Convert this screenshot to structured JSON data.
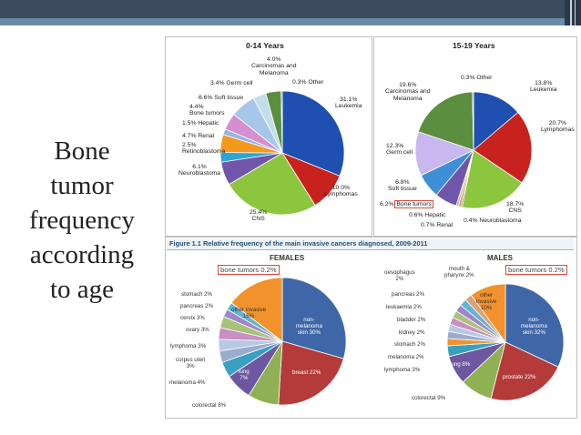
{
  "slide": {
    "title_lines": [
      "Bone",
      "tumor",
      "frequency",
      "according",
      "to age"
    ]
  },
  "chart_data": [
    {
      "type": "pie",
      "title": "0-14 Years",
      "slices": [
        {
          "label": "Leukemia",
          "text": "31.1%\nLeukemia",
          "value": 31.1,
          "color": "#1f4fb0"
        },
        {
          "label": "Lymphomas",
          "text": "10.0%\nLymphomas",
          "value": 10.0,
          "color": "#c8221e"
        },
        {
          "label": "CNS",
          "text": "25.4%\nCNS",
          "value": 25.4,
          "color": "#8cc63f"
        },
        {
          "label": "Neuroblastoma",
          "text": "6.1%\nNeuroblastoma",
          "value": 6.1,
          "color": "#7155a8"
        },
        {
          "label": "Retinoblastoma",
          "text": "2.5%\nRetinoblastoma",
          "value": 2.5,
          "color": "#2aa6d8"
        },
        {
          "label": "Renal",
          "text": "4.7% Renal",
          "value": 4.7,
          "color": "#f39a1e"
        },
        {
          "label": "Hepatic",
          "text": "1.5% Hepatic",
          "value": 1.5,
          "color": "#93b7e3"
        },
        {
          "label": "Bone tumors",
          "text": "4.4%\nBone tumors",
          "value": 4.4,
          "color": "#d58ecf"
        },
        {
          "label": "Soft tissue",
          "text": "6.6% Soft tissue",
          "value": 6.6,
          "color": "#a6c7ea"
        },
        {
          "label": "Germ cell",
          "text": "3.4% Germ cell",
          "value": 3.4,
          "color": "#c5ddea"
        },
        {
          "label": "Carcinomas and Melanoma",
          "text": "4.0%\nCarcinomas and\nMelanoma",
          "value": 4.0,
          "color": "#5b8f3f"
        },
        {
          "label": "Other",
          "text": "0.3% Other",
          "value": 0.3,
          "color": "#6b6b6b"
        }
      ]
    },
    {
      "type": "pie",
      "title": "15-19 Years",
      "slices": [
        {
          "label": "Leukemia",
          "text": "13.8%\nLeukemia",
          "value": 13.8,
          "color": "#1f4fb0"
        },
        {
          "label": "Lymphomas",
          "text": "20.7%\nLymphomas",
          "value": 20.7,
          "color": "#c8221e"
        },
        {
          "label": "CNS",
          "text": "18.7%\nCNS",
          "value": 18.7,
          "color": "#8cc63f"
        },
        {
          "label": "Neuroblastoma",
          "text": "0.4% Neuroblastoma",
          "value": 0.4,
          "color": "#7155a8"
        },
        {
          "label": "Renal",
          "text": "0.7% Renal",
          "value": 0.7,
          "color": "#f39a1e"
        },
        {
          "label": "Hepatic",
          "text": "0.6% Hepatic",
          "value": 0.6,
          "color": "#93b7e3"
        },
        {
          "label": "Bone tumors",
          "text": "6.2% Bone tumors",
          "value": 6.2,
          "color": "#7155a8"
        },
        {
          "label": "Soft tissue",
          "text": "6.8%\nSoft tissue",
          "value": 6.8,
          "color": "#3f8fd6"
        },
        {
          "label": "Germ cell",
          "text": "12.3%\nGerm cell",
          "value": 12.3,
          "color": "#c9b8ef"
        },
        {
          "label": "Carcinomas and Melanoma",
          "text": "19.6%\nCarcinomas and\nMelanoma",
          "value": 19.6,
          "color": "#5b8f3f"
        },
        {
          "label": "Other",
          "text": "0.3% Other",
          "value": 0.3,
          "color": "#6b6b6b"
        }
      ]
    },
    {
      "type": "pie",
      "title": "FEMALES",
      "figure_title": "Figure 1.1 Relative frequency of the main invasive cancers diagnosed, 2009-2011",
      "callout": "bone tumors 0.2%",
      "slices": [
        {
          "label": "non-melanoma skin",
          "text": "non-\nmelanoma\nskin 30%",
          "value": 30,
          "color": "#3f67a8"
        },
        {
          "label": "breast",
          "text": "breast 22%",
          "value": 22,
          "color": "#b43b39"
        },
        {
          "label": "colorectal",
          "text": "colorectal 8%",
          "value": 8,
          "color": "#8fb153"
        },
        {
          "label": "lung",
          "text": "lung\n7%",
          "value": 7,
          "color": "#6c57a0"
        },
        {
          "label": "melanoma",
          "text": "melanoma 4%",
          "value": 4,
          "color": "#3aa0c2"
        },
        {
          "label": "corpus uteri",
          "text": "corpus uteri\n3%",
          "value": 3,
          "color": "#9aaccf"
        },
        {
          "label": "lymphoma",
          "text": "lymphoma 3%",
          "value": 3,
          "color": "#b7c8e4"
        },
        {
          "label": "ovary",
          "text": "ovary 3%",
          "value": 3,
          "color": "#c98ec3"
        },
        {
          "label": "cervix",
          "text": "cervix 3%",
          "value": 3,
          "color": "#a9c27a"
        },
        {
          "label": "pancreas",
          "text": "pancreas 2%",
          "value": 2,
          "color": "#9e86c8"
        },
        {
          "label": "stomach",
          "text": "stomach 2%",
          "value": 2,
          "color": "#62b5d3"
        },
        {
          "label": "other invasive",
          "text": "other invasive\n15%",
          "value": 15,
          "color": "#f2922c"
        }
      ]
    },
    {
      "type": "pie",
      "title": "MALES",
      "callout": "bone tumors 0.2%",
      "slices": [
        {
          "label": "non-melanoma skin",
          "text": "non-\nmelanoma\nskin 32%",
          "value": 32,
          "color": "#3f67a8"
        },
        {
          "label": "prostate",
          "text": "prostate 22%",
          "value": 22,
          "color": "#b43b39"
        },
        {
          "label": "colorectal",
          "text": "colorectal 9%",
          "value": 9,
          "color": "#8fb153"
        },
        {
          "label": "lung",
          "text": "lung 8%",
          "value": 8,
          "color": "#6c57a0"
        },
        {
          "label": "lymphoma",
          "text": "lymphoma 3%",
          "value": 3,
          "color": "#3aa0c2"
        },
        {
          "label": "melanoma",
          "text": "melanoma 2%",
          "value": 2,
          "color": "#f2922c"
        },
        {
          "label": "stomach",
          "text": "stomach 2%",
          "value": 2,
          "color": "#9aaccf"
        },
        {
          "label": "kidney",
          "text": "kidney 2%",
          "value": 2,
          "color": "#b7c8e4"
        },
        {
          "label": "bladder",
          "text": "bladder 2%",
          "value": 2,
          "color": "#c98ec3"
        },
        {
          "label": "leukaemia",
          "text": "leukaemia 2%",
          "value": 2,
          "color": "#a9c27a"
        },
        {
          "label": "pancreas",
          "text": "pancreas 2%",
          "value": 2,
          "color": "#9e86c8"
        },
        {
          "label": "oesophagus",
          "text": "oesophagus\n2%",
          "value": 2,
          "color": "#62b5d3"
        },
        {
          "label": "mouth & pharynx",
          "text": "mouth &\npharynx 2%",
          "value": 2,
          "color": "#d9a27a"
        },
        {
          "label": "other invasive",
          "text": "other\ninvasive\n10%",
          "value": 10,
          "color": "#f2922c"
        }
      ]
    }
  ]
}
